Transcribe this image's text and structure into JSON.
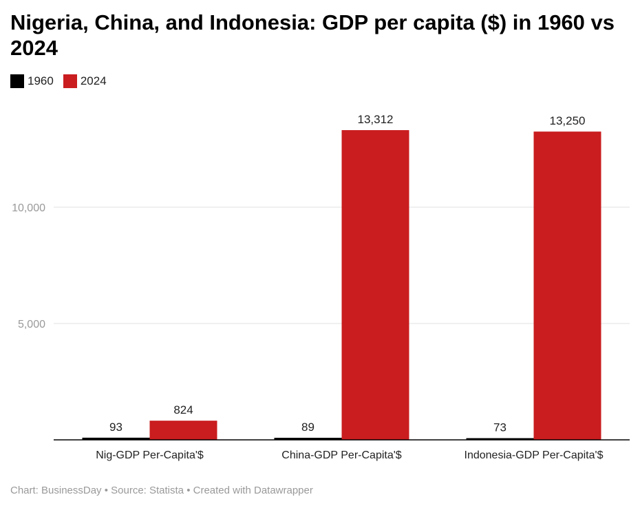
{
  "chart_data": {
    "type": "bar",
    "title": "Nigeria, China, and Indonesia: GDP per capita ($) in 1960 vs 2024",
    "categories": [
      "Nig-GDP Per-Capita'$",
      "China-GDP Per-Capita'$",
      "Indonesia-GDP Per-Capita'$"
    ],
    "series": [
      {
        "name": "1960",
        "color": "#000000",
        "values": [
          93,
          89,
          73
        ],
        "labels": [
          "93",
          "89",
          "73"
        ]
      },
      {
        "name": "2024",
        "color": "#c91d1f",
        "values": [
          824,
          13312,
          13250
        ],
        "labels": [
          "824",
          "13,312",
          "13,250"
        ]
      }
    ],
    "yticks": [
      {
        "value": 5000,
        "label": "5,000"
      },
      {
        "value": 10000,
        "label": "10,000"
      }
    ],
    "ylim": [
      0,
      14000
    ],
    "grid": true,
    "legend_position": "top-left"
  },
  "footer": "Chart: BusinessDay • Source: Statista • Created with Datawrapper"
}
